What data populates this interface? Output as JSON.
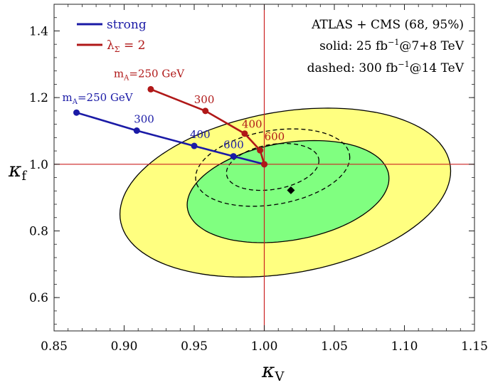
{
  "chart_data": {
    "type": "contour-scatter",
    "xlabel_main": "κ",
    "xlabel_sub": "V",
    "ylabel_main": "κ",
    "ylabel_sub": "f",
    "xlim": [
      0.85,
      1.15
    ],
    "ylim": [
      0.5,
      1.48
    ],
    "x_ticks": [
      0.85,
      0.9,
      0.95,
      1.0,
      1.05,
      1.1,
      1.15
    ],
    "x_tick_labels": [
      "0.85",
      "0.90",
      "0.95",
      "1.00",
      "1.05",
      "1.10",
      "1.15"
    ],
    "y_ticks": [
      0.6,
      0.8,
      1.0,
      1.2,
      1.4
    ],
    "y_tick_labels": [
      "0.6",
      "0.8",
      "1.0",
      "1.2",
      "1.4"
    ],
    "reference_lines": {
      "x": 1.0,
      "y": 1.0,
      "color": "#cc2222"
    },
    "best_fit": {
      "x": 1.019,
      "y": 0.922
    },
    "contours": [
      {
        "name": "95% solid",
        "cx": 1.015,
        "cy": 0.915,
        "rx": 0.118,
        "ry": 0.245,
        "tilt": 0.55,
        "fill": "#ffff80",
        "dashed": false
      },
      {
        "name": "68% solid",
        "cx": 1.017,
        "cy": 0.918,
        "rx": 0.072,
        "ry": 0.148,
        "tilt": 0.55,
        "fill": "#80ff80",
        "dashed": false
      },
      {
        "name": "95% dashed",
        "cx": 1.006,
        "cy": 0.99,
        "rx": 0.055,
        "ry": 0.112,
        "tilt": 0.55,
        "fill": "none",
        "dashed": true
      },
      {
        "name": "68% dashed",
        "cx": 1.006,
        "cy": 0.992,
        "rx": 0.033,
        "ry": 0.068,
        "tilt": 0.55,
        "fill": "none",
        "dashed": true
      }
    ],
    "series": [
      {
        "name": "strong",
        "color": "#1a1aa6",
        "points": [
          {
            "x": 0.866,
            "y": 1.155,
            "label": "m",
            "label_sub": "A",
            "label_rest": "=250 GeV"
          },
          {
            "x": 0.909,
            "y": 1.101,
            "label": "300"
          },
          {
            "x": 0.95,
            "y": 1.055,
            "label": "400"
          },
          {
            "x": 0.978,
            "y": 1.024,
            "label": "600"
          },
          {
            "x": 1.0,
            "y": 1.0,
            "label": ""
          }
        ]
      },
      {
        "name": "λΣ = 2",
        "name_main": "λ",
        "name_sub": "Σ",
        "name_rest": " = 2",
        "color": "#b01818",
        "points": [
          {
            "x": 0.919,
            "y": 1.225,
            "label": "m",
            "label_sub": "A",
            "label_rest": "=250 GeV"
          },
          {
            "x": 0.958,
            "y": 1.16,
            "label": "300"
          },
          {
            "x": 0.986,
            "y": 1.092,
            "label": "400"
          },
          {
            "x": 0.997,
            "y": 1.042,
            "label": "600"
          },
          {
            "x": 1.0,
            "y": 1.0,
            "label": ""
          }
        ]
      }
    ],
    "legend": {
      "placement": "top-left",
      "strong_label": "strong",
      "lambda_main": "λ",
      "lambda_sub": "Σ",
      "lambda_rest": " = 2"
    },
    "annotations": {
      "line1": "ATLAS + CMS (68, 95%)",
      "line2_a": "solid: 25 fb",
      "line2_sup": "−1",
      "line2_b": "@7+8 TeV",
      "line3_a": "dashed: 300 fb",
      "line3_sup": "−1",
      "line3_b": "@14 TeV"
    }
  }
}
